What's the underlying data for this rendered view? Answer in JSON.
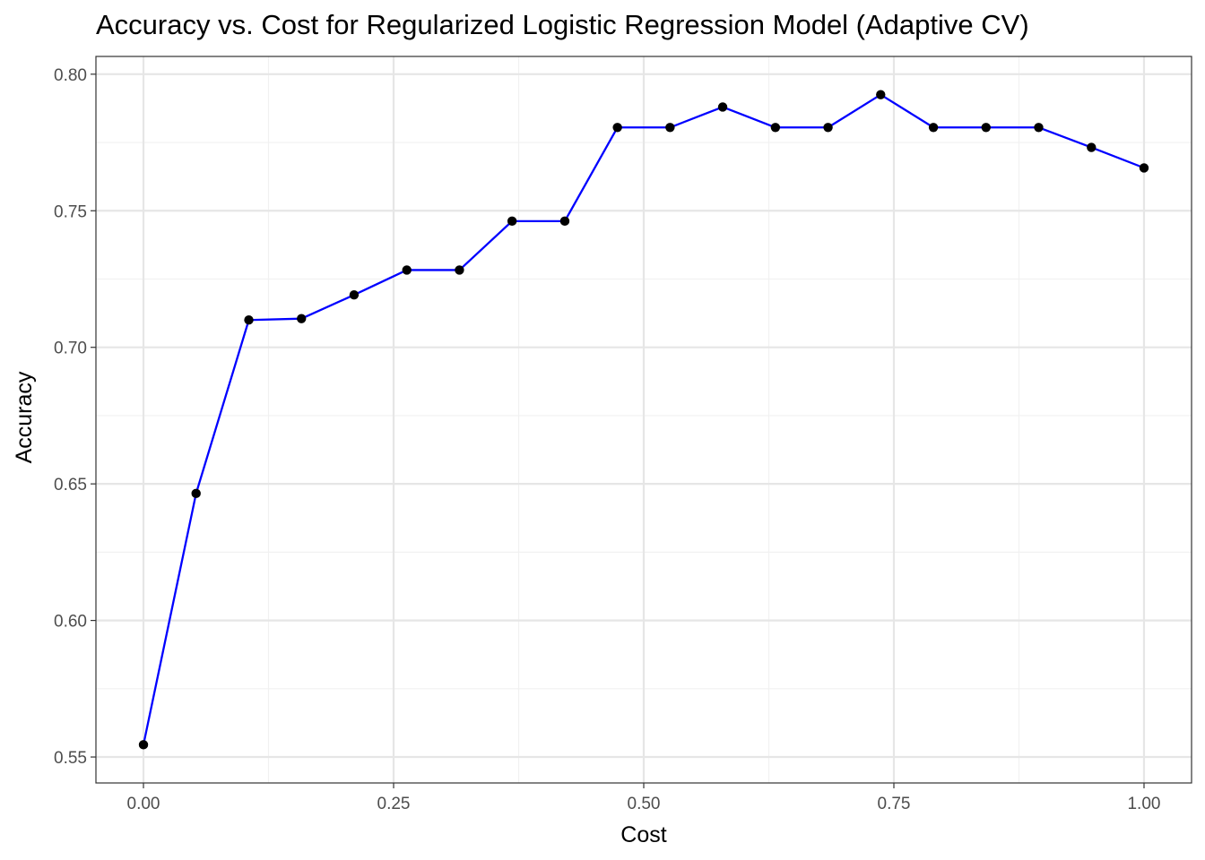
{
  "chart_data": {
    "type": "line",
    "title": "Accuracy vs. Cost for Regularized Logistic Regression Model (Adaptive CV)",
    "xlabel": "Cost",
    "ylabel": "Accuracy",
    "xlim": [
      -0.0475,
      1.0475
    ],
    "ylim": [
      0.5405,
      0.8065
    ],
    "x_ticks": [
      0.0,
      0.25,
      0.5,
      0.75,
      1.0
    ],
    "x_tick_labels": [
      "0.00",
      "0.25",
      "0.50",
      "0.75",
      "1.00"
    ],
    "y_ticks": [
      0.55,
      0.6,
      0.65,
      0.7,
      0.75,
      0.8
    ],
    "y_tick_labels": [
      "0.55",
      "0.60",
      "0.65",
      "0.70",
      "0.75",
      "0.80"
    ],
    "grid": true,
    "line_color": "#0000ff",
    "point_color": "#000000",
    "series": [
      {
        "x": [
          0.0,
          0.0526,
          0.1053,
          0.1579,
          0.2105,
          0.2632,
          0.3158,
          0.3684,
          0.4211,
          0.4737,
          0.5263,
          0.5789,
          0.6316,
          0.6842,
          0.7368,
          0.7895,
          0.8421,
          0.8947,
          0.9474,
          1.0
        ],
        "y": [
          0.5545,
          0.6465,
          0.71,
          0.7105,
          0.7192,
          0.7283,
          0.7283,
          0.7462,
          0.7462,
          0.7805,
          0.7805,
          0.788,
          0.7805,
          0.7805,
          0.7925,
          0.7805,
          0.7805,
          0.7805,
          0.7732,
          0.7657
        ]
      }
    ]
  }
}
